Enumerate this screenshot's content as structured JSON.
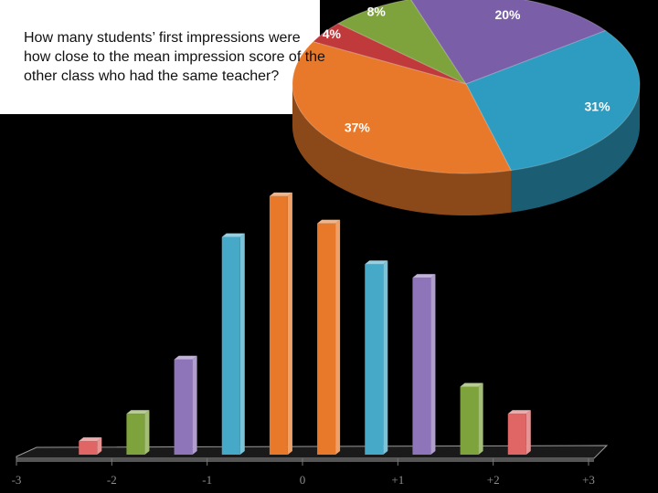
{
  "question": "How many students’ first impressions were how close to the mean impression score of the other class who had the same teacher?",
  "chart_data": [
    {
      "type": "pie",
      "values": [
        4,
        8,
        20,
        31,
        37
      ],
      "value_labels": [
        "4%",
        "8%",
        "20%",
        "31%",
        "37%"
      ],
      "colors": [
        "#c0393b",
        "#7fa33c",
        "#7a5fa8",
        "#2e9cc0",
        "#e8792a"
      ]
    },
    {
      "type": "bar",
      "x": [
        -2.25,
        -1.75,
        -1.25,
        -0.75,
        -0.25,
        0.25,
        0.75,
        1.25,
        1.75,
        2.25
      ],
      "values": [
        1,
        3,
        7,
        16,
        19,
        17,
        14,
        13,
        5,
        3
      ],
      "colors": [
        "#e06666",
        "#7fa33c",
        "#8e74b8",
        "#46a9c8",
        "#e8792a",
        "#e8792a",
        "#46a9c8",
        "#8e74b8",
        "#7fa33c",
        "#e06666"
      ],
      "xlim": [
        -3,
        3
      ],
      "xticks": [
        -3,
        -2,
        -1,
        0,
        {
          "value": 1,
          "label": "+1"
        },
        {
          "value": 2,
          "label": "+2"
        },
        {
          "value": 3,
          "label": "+3"
        }
      ],
      "ylim": [
        0,
        20
      ]
    }
  ]
}
